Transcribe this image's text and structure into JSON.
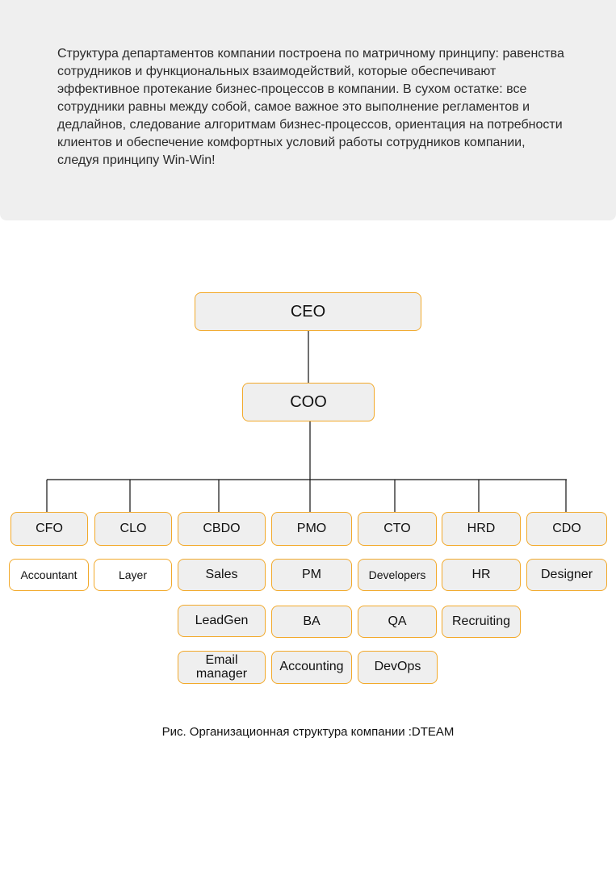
{
  "intro": {
    "text": "Структура департаментов компании построена по матричному принципу: равенства сотрудников и функциональных взаимодействий, которые обеспечивают эффективное протекание бизнес-процессов в компании. В сухом остатке: все сотрудники равны между собой, самое важное это выполнение регламентов и дедлайнов, следование алгоритмам бизнес-процессов, ориентация на потребности клиентов и обеспечение комфортных условий работы сотрудников компании, следуя принципу Win-Win!"
  },
  "org": {
    "ceo": "CEO",
    "coo": "COO",
    "departments": [
      {
        "head": "CFO",
        "teams": [
          "Accountant"
        ]
      },
      {
        "head": "CLO",
        "teams": [
          "Layer"
        ]
      },
      {
        "head": "CBDO",
        "teams": [
          "Sales",
          "LeadGen",
          "Email manager"
        ]
      },
      {
        "head": "PMO",
        "teams": [
          "PM",
          "BA",
          "Accounting"
        ]
      },
      {
        "head": "CTO",
        "teams": [
          "Developers",
          "QA",
          "DevOps"
        ]
      },
      {
        "head": "HRD",
        "teams": [
          "HR",
          "Recruiting"
        ]
      },
      {
        "head": "CDO",
        "teams": [
          "Designer"
        ]
      }
    ]
  },
  "caption": "Рис. Организационная структура компании  :DTEAM",
  "colors": {
    "box_border": "#f2a92a",
    "box_fill": "#efefef",
    "line": "#111111"
  }
}
